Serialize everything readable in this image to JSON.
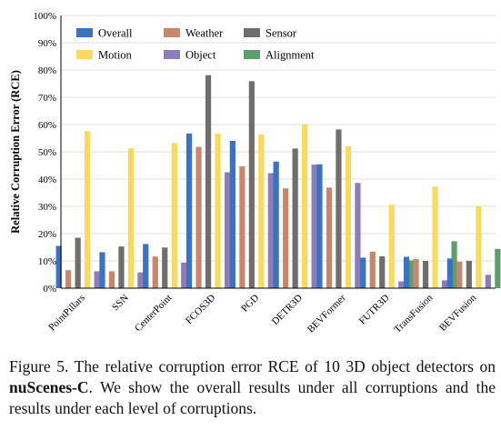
{
  "chart_data": {
    "type": "bar",
    "ylabel": "Relative Corruption Error (RCE)",
    "ylim": [
      0,
      100
    ],
    "yticks": [
      "0%",
      "10%",
      "20%",
      "30%",
      "40%",
      "50%",
      "60%",
      "70%",
      "80%",
      "90%",
      "100%"
    ],
    "categories": [
      "PointPillars",
      "SSN",
      "CenterPoint",
      "FCOS3D",
      "PGD",
      "DETR3D",
      "BEVFormer",
      "FUTR3D",
      "TransFusion",
      "BEVFusion"
    ],
    "legend_position": "top-left",
    "series": [
      {
        "name": "Overall",
        "color": "#3a72c4",
        "values": [
          15.5,
          13.2,
          16.2,
          56.7,
          54.0,
          46.4,
          45.4,
          11.2,
          11.5,
          10.9
        ]
      },
      {
        "name": "Weather",
        "color": "#c8876b",
        "values": [
          6.6,
          6.2,
          11.6,
          51.8,
          44.7,
          36.6,
          36.9,
          13.4,
          10.7,
          9.7
        ]
      },
      {
        "name": "Sensor",
        "color": "#6e6e6e",
        "values": [
          18.5,
          15.3,
          14.9,
          78.1,
          75.9,
          51.2,
          58.2,
          11.7,
          10.0,
          10.0
        ]
      },
      {
        "name": "Motion",
        "color": "#fada5c",
        "values": [
          57.6,
          51.3,
          53.2,
          56.7,
          56.4,
          60.0,
          52.0,
          30.6,
          37.3,
          30.0
        ]
      },
      {
        "name": "Object",
        "color": "#8c7db8",
        "values": [
          6.2,
          5.8,
          9.4,
          42.5,
          42.2,
          45.3,
          38.6,
          2.5,
          2.9,
          4.9
        ]
      },
      {
        "name": "Alignment",
        "color": "#5e9e6e",
        "values": [
          0,
          0,
          0,
          0,
          0,
          0,
          0,
          10.2,
          17.2,
          14.4
        ]
      }
    ]
  },
  "caption": {
    "prefix": "Figure 5. The relative corruption error RCE of 10 3D object detectors on ",
    "emphasis": "nuScenes-C",
    "suffix": ". We show the overall results under all corruptions and the results under each level of corruptions."
  }
}
